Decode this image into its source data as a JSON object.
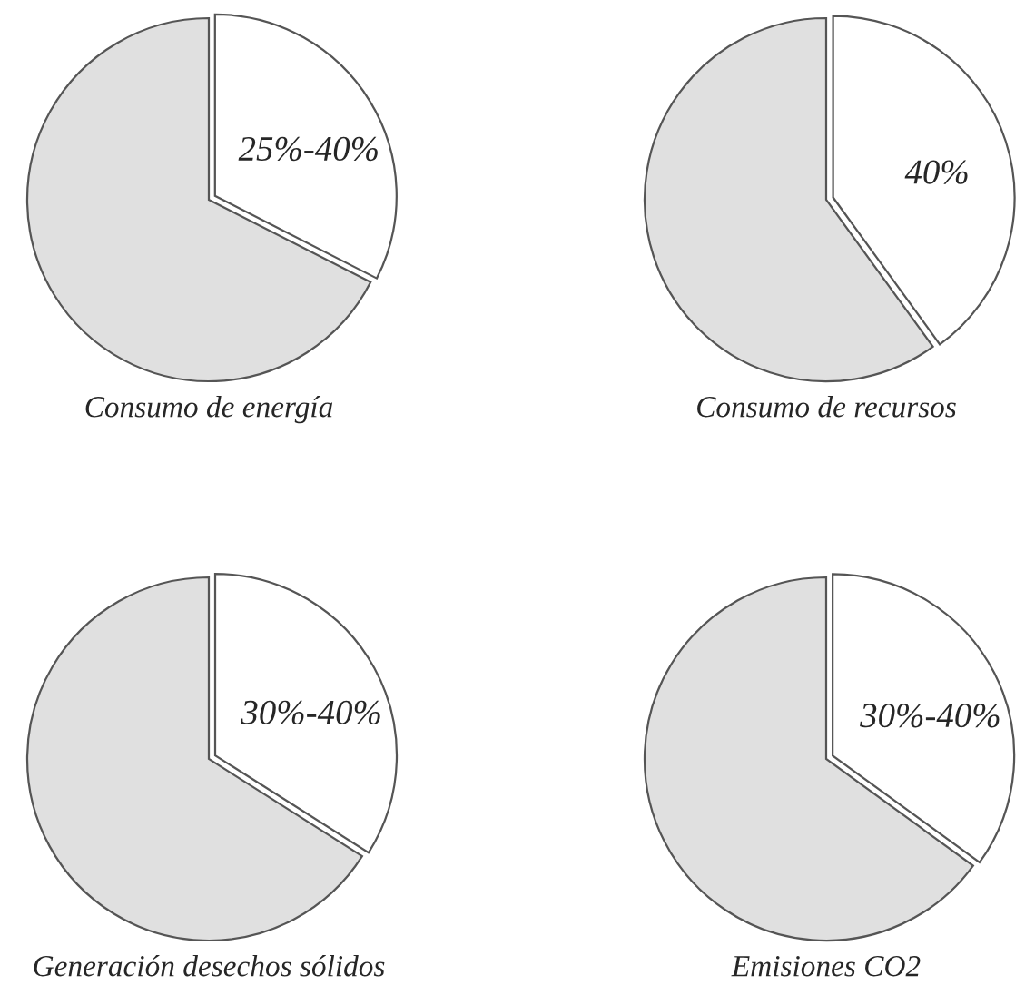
{
  "chart_data": [
    {
      "type": "pie",
      "title": "Consumo de energía",
      "categories": [
        null,
        null
      ],
      "values": [
        32.5,
        67.5
      ],
      "colors": [
        "#ffffff",
        "#e0e0e0"
      ],
      "annotations": [
        "25%-40%"
      ]
    },
    {
      "type": "pie",
      "title": "Consumo de recursos",
      "categories": [
        null,
        null
      ],
      "values": [
        40,
        60
      ],
      "colors": [
        "#ffffff",
        "#e0e0e0"
      ],
      "value_labels": [
        "40%",
        null
      ]
    },
    {
      "type": "pie",
      "title": "Generación desechos sólidos",
      "categories": [
        null,
        null
      ],
      "values": [
        34,
        66
      ],
      "colors": [
        "#ffffff",
        "#e0e0e0"
      ],
      "annotations": [
        "30%-40%"
      ]
    },
    {
      "type": "pie",
      "title": "Emisiones CO2",
      "categories": [
        null,
        null
      ],
      "values": [
        35,
        65
      ],
      "colors": [
        "#ffffff",
        "#e0e0e0"
      ],
      "annotations": [
        "30%-40%"
      ]
    }
  ]
}
